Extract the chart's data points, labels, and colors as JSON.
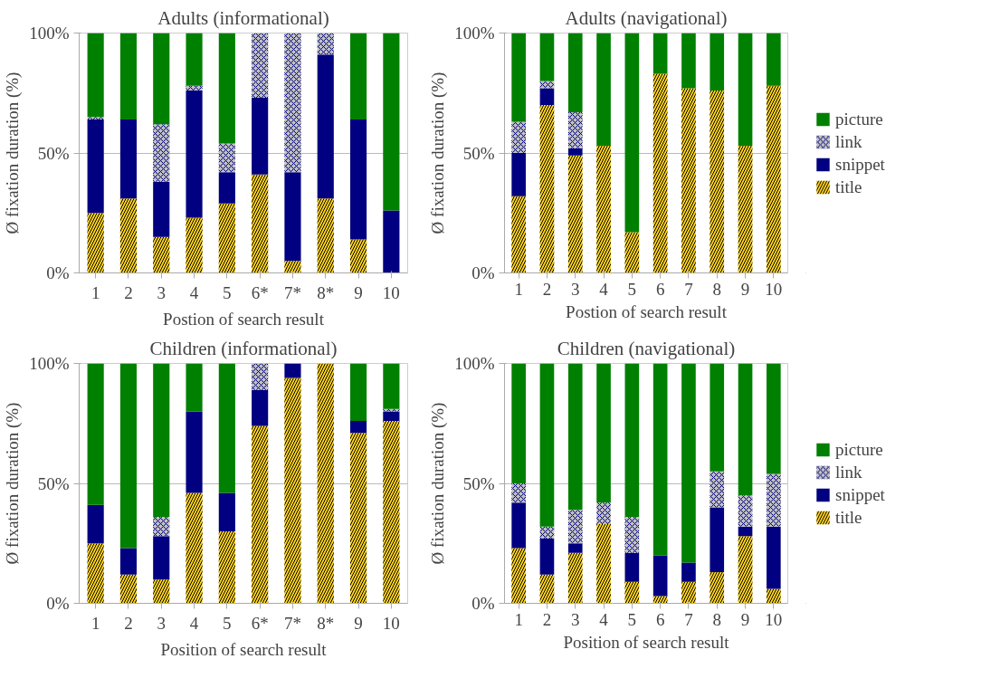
{
  "chart_data": [
    {
      "type": "bar",
      "stacked": true,
      "title": "Adults (informational)",
      "xlabel": "Postion of search result",
      "ylabel": "Ø fixation duration (%)",
      "categories": [
        "1",
        "2",
        "3",
        "4",
        "5",
        "6*",
        "7*",
        "8*",
        "9",
        "10"
      ],
      "ylim": [
        0,
        100
      ],
      "yticks": [
        {
          "value": 0,
          "label": "0%"
        },
        {
          "value": 50,
          "label": "50%"
        },
        {
          "value": 100,
          "label": "100%"
        }
      ],
      "grid": "y",
      "legend": false,
      "series": [
        {
          "color": "#ffd320",
          "values": [
            25,
            31,
            15,
            23,
            29,
            41,
            5,
            31,
            14,
            0
          ]
        },
        {
          "color": "#000080",
          "values": [
            39,
            33,
            23,
            53,
            13,
            32,
            37,
            60,
            50,
            26
          ]
        },
        {
          "color": "#c0c0c0",
          "values": [
            1,
            0,
            24,
            2,
            12,
            27,
            58,
            9,
            0,
            0
          ]
        },
        {
          "color": "#008000",
          "values": [
            35,
            36,
            38,
            22,
            46,
            0,
            0,
            0,
            36,
            74
          ]
        }
      ]
    },
    {
      "type": "bar",
      "stacked": true,
      "title": "Adults (navigational)",
      "xlabel": "Postion of search result",
      "ylabel": "Ø fixation duration (%)",
      "categories": [
        "1",
        "2",
        "3",
        "4",
        "5",
        "6",
        "7",
        "8",
        "9",
        "10"
      ],
      "ylim": [
        0,
        100
      ],
      "yticks": [
        {
          "value": 0,
          "label": "0%"
        },
        {
          "value": 50,
          "label": "50%"
        },
        {
          "value": 100,
          "label": "100%"
        }
      ],
      "grid": "y",
      "legend": "right",
      "series": [
        {
          "name": "title",
          "color": "#ffd320",
          "values": [
            32,
            70,
            49,
            53,
            17,
            83,
            77,
            76,
            53,
            78
          ]
        },
        {
          "name": "snippet",
          "color": "#000080",
          "values": [
            18,
            7,
            3,
            0,
            0,
            0,
            0,
            0,
            0,
            0
          ]
        },
        {
          "name": "link",
          "color": "#c0c0c0",
          "values": [
            13,
            3,
            15,
            0,
            0,
            0,
            0,
            0,
            0,
            0
          ]
        },
        {
          "name": "picture",
          "color": "#008000",
          "values": [
            37,
            20,
            33,
            47,
            83,
            17,
            23,
            24,
            47,
            22
          ]
        }
      ]
    },
    {
      "type": "bar",
      "stacked": true,
      "title": "Children (informational)",
      "xlabel": "Position of search result",
      "ylabel": "Ø fixation duration (%)",
      "categories": [
        "1",
        "2",
        "3",
        "4",
        "5",
        "6*",
        "7*",
        "8*",
        "9",
        "10"
      ],
      "ylim": [
        0,
        100
      ],
      "yticks": [
        {
          "value": 0,
          "label": "0%"
        },
        {
          "value": 50,
          "label": "50%"
        },
        {
          "value": 100,
          "label": "100%"
        }
      ],
      "grid": "y",
      "legend": false,
      "series": [
        {
          "color": "#ffd320",
          "values": [
            25,
            12,
            10,
            46,
            30,
            74,
            94,
            100,
            71,
            76
          ]
        },
        {
          "color": "#000080",
          "values": [
            16,
            11,
            18,
            34,
            16,
            15,
            6,
            0,
            5,
            4
          ]
        },
        {
          "color": "#c0c0c0",
          "values": [
            0,
            0,
            8,
            0,
            0,
            11,
            0,
            0,
            0,
            1
          ]
        },
        {
          "color": "#008000",
          "values": [
            59,
            77,
            64,
            20,
            54,
            0,
            0,
            0,
            24,
            19
          ]
        }
      ]
    },
    {
      "type": "bar",
      "stacked": true,
      "title": "Children (navigational)",
      "xlabel": "Position of search result",
      "ylabel": "Ø fixation duration (%)",
      "categories": [
        "1",
        "2",
        "3",
        "4",
        "5",
        "6",
        "7",
        "8",
        "9",
        "10"
      ],
      "ylim": [
        0,
        100
      ],
      "yticks": [
        {
          "value": 0,
          "label": "0%"
        },
        {
          "value": 50,
          "label": "50%"
        },
        {
          "value": 100,
          "label": "100%"
        }
      ],
      "grid": "y",
      "legend": "right",
      "series": [
        {
          "name": "title",
          "color": "#ffd320",
          "values": [
            23,
            12,
            21,
            33,
            9,
            3,
            9,
            13,
            28,
            6
          ]
        },
        {
          "name": "snippet",
          "color": "#000080",
          "values": [
            19,
            15,
            4,
            0,
            12,
            17,
            8,
            27,
            4,
            26
          ]
        },
        {
          "name": "link",
          "color": "#c0c0c0",
          "values": [
            8,
            5,
            14,
            9,
            15,
            0,
            0,
            15,
            13,
            22
          ]
        },
        {
          "name": "picture",
          "color": "#008000",
          "values": [
            50,
            68,
            61,
            58,
            64,
            80,
            83,
            45,
            55,
            46
          ]
        }
      ]
    }
  ]
}
